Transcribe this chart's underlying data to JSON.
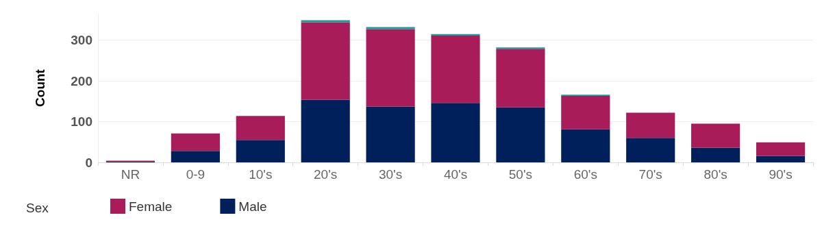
{
  "chart_data": {
    "type": "bar",
    "stacked": true,
    "ylabel": "Count",
    "legend_title": "Sex",
    "categories": [
      "NR",
      "0-9",
      "10's",
      "20's",
      "30's",
      "40's",
      "50's",
      "60's",
      "70's",
      "80's",
      "90's"
    ],
    "series": [
      {
        "name": "Male",
        "color": "#00205c",
        "values": [
          2,
          28,
          55,
          154,
          137,
          146,
          135,
          81,
          60,
          36,
          16
        ]
      },
      {
        "name": "Female",
        "color": "#a81c5a",
        "values": [
          2,
          43,
          59,
          190,
          190,
          165,
          144,
          82,
          62,
          59,
          33
        ]
      },
      {
        "color": "#1a9a9a",
        "values": [
          null,
          null,
          null,
          5,
          5,
          4,
          3,
          3,
          null,
          null,
          null
        ]
      }
    ],
    "ylim": [
      0,
      365
    ],
    "yticks": [
      0,
      100,
      200,
      300
    ],
    "grid": "y",
    "legend": "bottom left"
  }
}
